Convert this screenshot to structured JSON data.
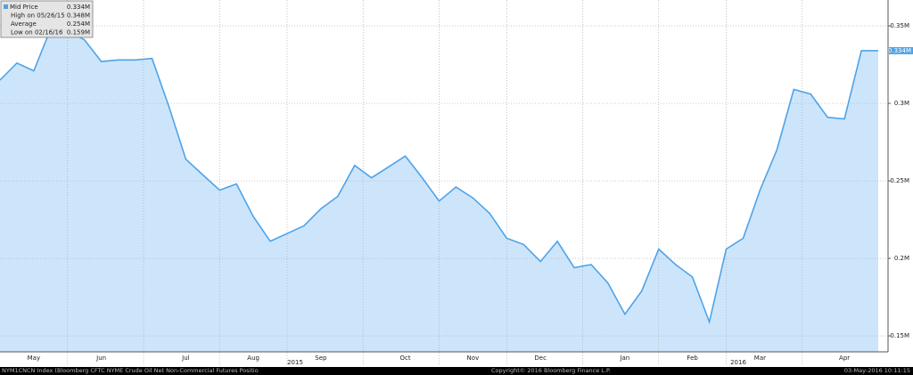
{
  "chart_data": {
    "type": "area",
    "categories": [
      null,
      null,
      "May",
      null,
      null,
      null,
      "Jun",
      null,
      null,
      null,
      null,
      "Jul",
      null,
      null,
      null,
      "Aug",
      null,
      null,
      null,
      "Sep",
      null,
      null,
      null,
      null,
      "Oct",
      null,
      null,
      null,
      "Nov",
      null,
      null,
      null,
      "Dec",
      null,
      null,
      null,
      null,
      "Jan",
      null,
      null,
      null,
      "Feb",
      null,
      null,
      null,
      "Mar",
      null,
      null,
      null,
      null,
      "Apr",
      null,
      null
    ],
    "series": [
      {
        "name": "Mid Price",
        "color": "#4ea3e8",
        "values": [
          0.315,
          0.326,
          0.321,
          0.348,
          0.347,
          0.341,
          0.327,
          0.328,
          0.328,
          0.329,
          0.298,
          0.264,
          0.254,
          0.244,
          0.248,
          0.227,
          0.211,
          0.216,
          0.221,
          0.232,
          0.24,
          0.26,
          0.252,
          0.259,
          0.266,
          0.252,
          0.237,
          0.246,
          0.239,
          0.229,
          0.213,
          0.209,
          0.198,
          0.211,
          0.194,
          0.196,
          0.184,
          0.164,
          0.179,
          0.206,
          0.196,
          0.188,
          0.159,
          0.206,
          0.213,
          0.244,
          0.27,
          0.309,
          0.306,
          0.291,
          0.29,
          0.334,
          0.334
        ]
      }
    ],
    "fill_color": "#cde5fb",
    "ylim": [
      0.1397,
      0.3667
    ],
    "yticks": [
      {
        "value": 0.15,
        "label": "0.15M"
      },
      {
        "value": 0.2,
        "label": "0.2M"
      },
      {
        "value": 0.25,
        "label": "0.25M"
      },
      {
        "value": 0.3,
        "label": "0.3M"
      },
      {
        "value": 0.35,
        "label": "0.35M"
      }
    ],
    "grid": true,
    "year_labels": [
      "2015",
      "2016"
    ],
    "last_value_label": "0.334M",
    "legend_rows": [
      [
        "Mid Price",
        "0.334M"
      ],
      [
        "High on 05/26/15",
        "0.348M"
      ],
      [
        "Average",
        "0.254M"
      ],
      [
        "Low on 02/16/16",
        "0.159M"
      ]
    ],
    "footer": {
      "left": "NYM1CNCN Index (Bloomberg CFTC NYME Crude Oil Net Non-Commercial Futures Positio",
      "center": "Copyright© 2016 Bloomberg Finance L.P.",
      "right": "03-May-2016 10:11:15"
    }
  }
}
